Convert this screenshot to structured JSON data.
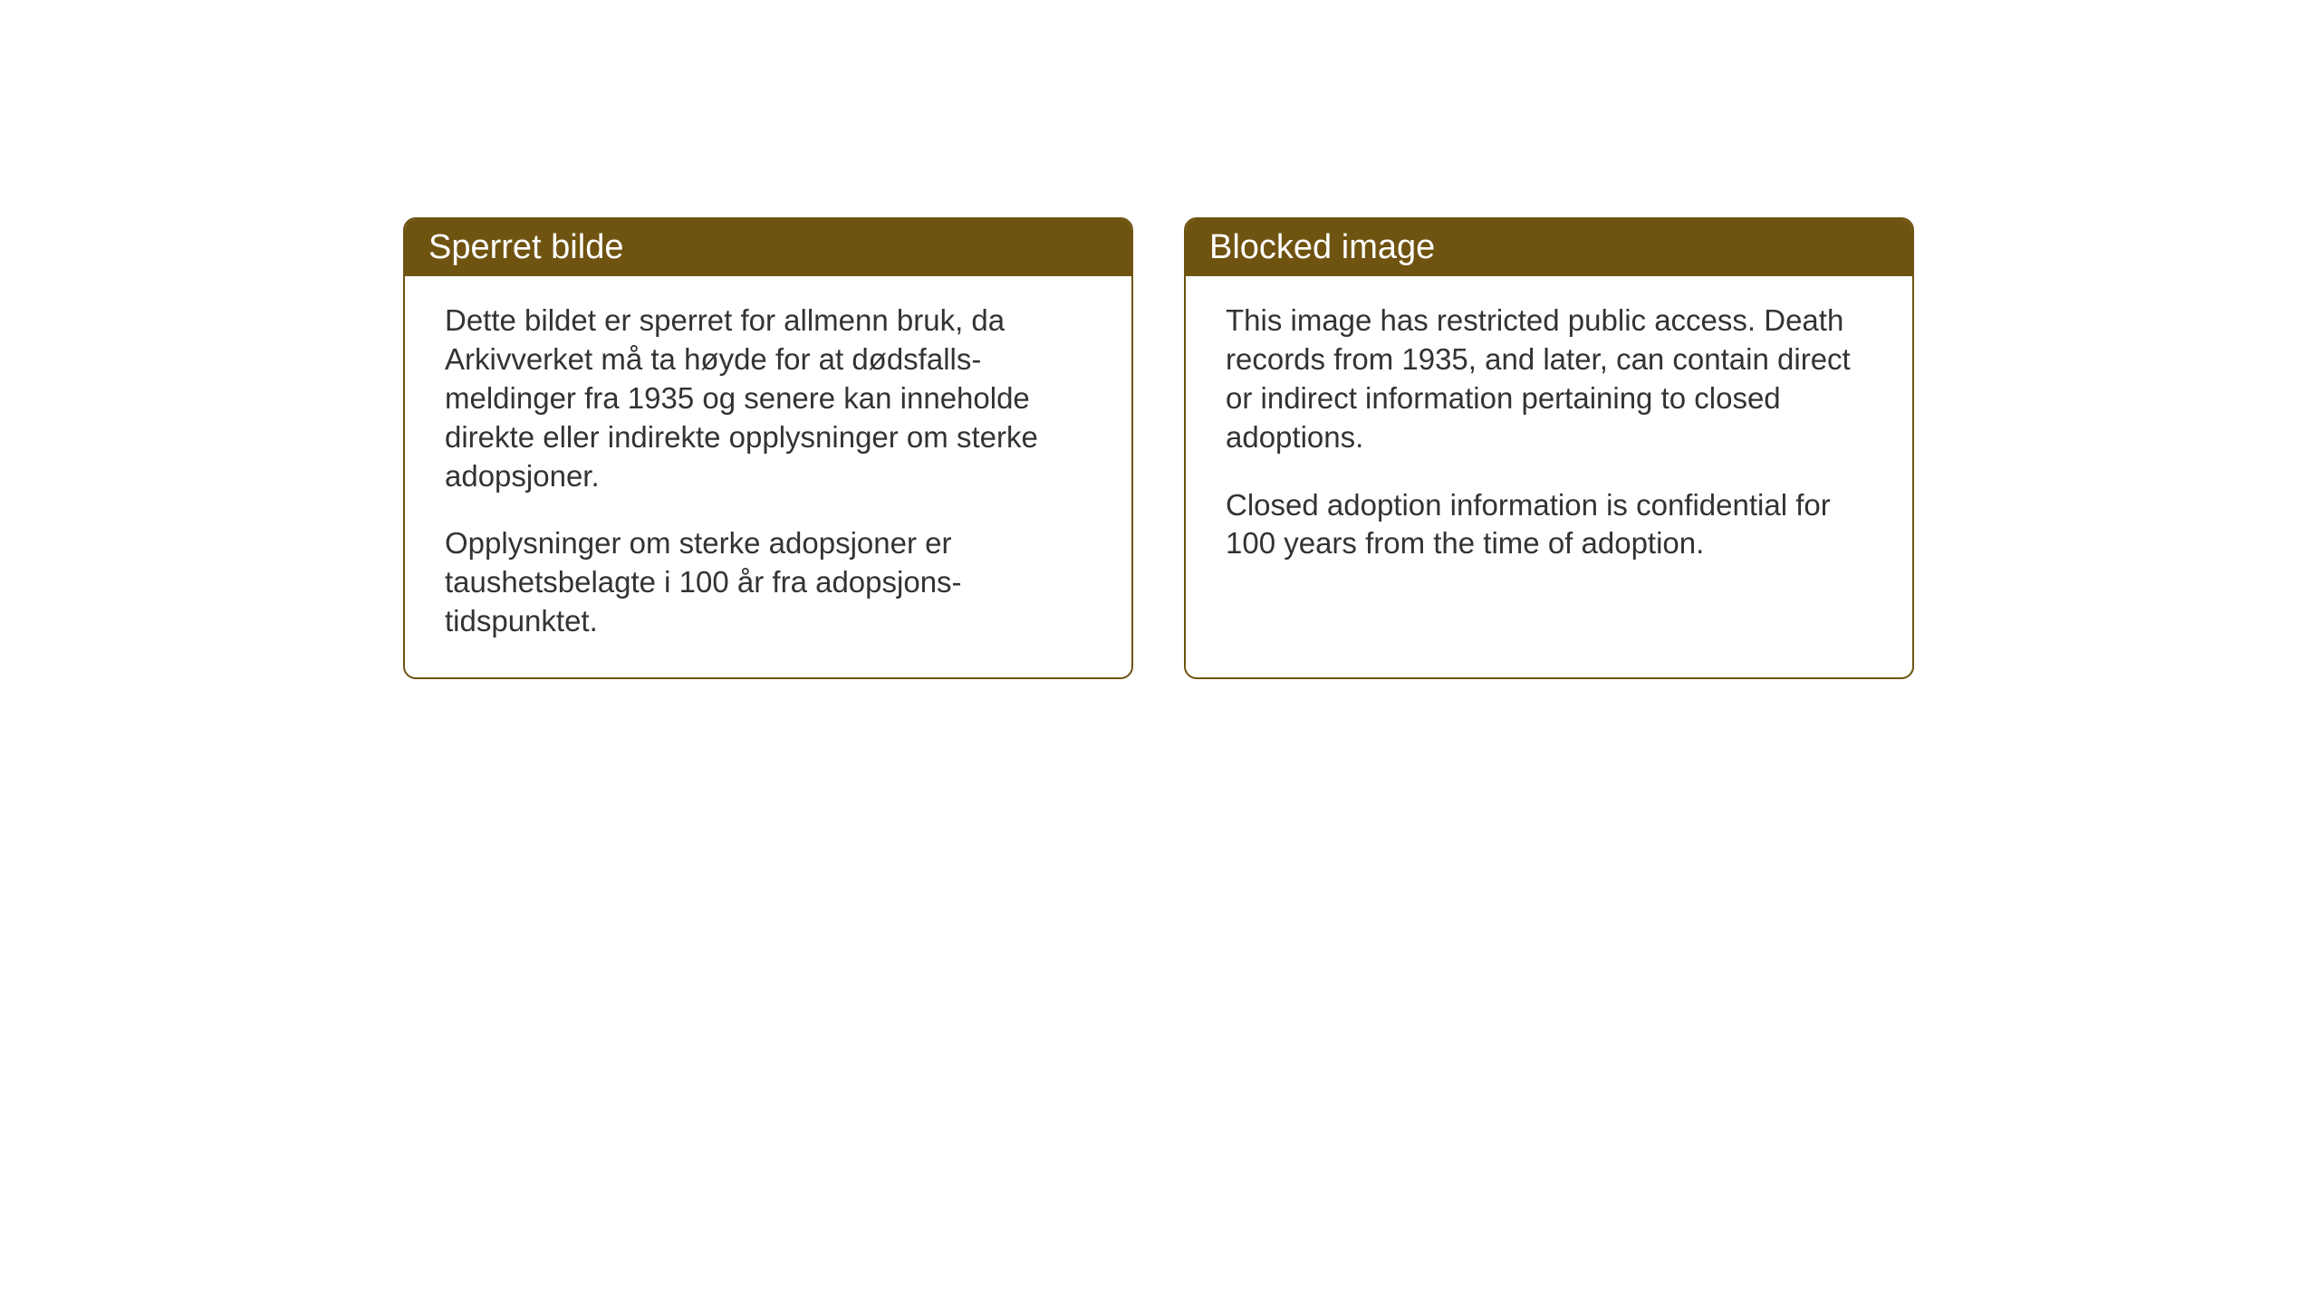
{
  "notices": {
    "left": {
      "title": "Sperret bilde",
      "paragraph1": "Dette bildet er sperret for allmenn bruk, da Arkivverket må ta høyde for at dødsfalls-meldinger fra 1935 og senere kan inneholde direkte eller indirekte opplysninger om sterke adopsjoner.",
      "paragraph2": "Opplysninger om sterke adopsjoner er taushetsbelagte i 100 år fra adopsjons-tidspunktet."
    },
    "right": {
      "title": "Blocked image",
      "paragraph1": "This image has restricted public access. Death records from 1935, and later, can contain direct or indirect information pertaining to closed adoptions.",
      "paragraph2": "Closed adoption information is confidential for 100 years from the time of adoption."
    }
  },
  "styling": {
    "header_background": "#6f5310",
    "header_text_color": "#ffffff",
    "border_color": "#6f5310",
    "body_text_color": "#333333",
    "page_background": "#ffffff",
    "title_fontsize": 38,
    "body_fontsize": 33,
    "border_radius": 14,
    "border_width": 2
  }
}
